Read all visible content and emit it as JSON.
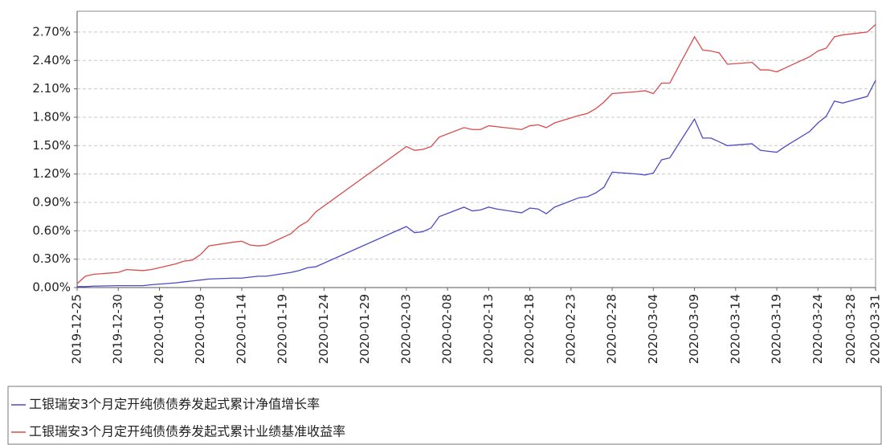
{
  "chart_data": {
    "type": "line",
    "x": [
      "2019-12-25",
      "2019-12-26",
      "2019-12-27",
      "2019-12-30",
      "2019-12-31",
      "2020-01-02",
      "2020-01-03",
      "2020-01-06",
      "2020-01-07",
      "2020-01-08",
      "2020-01-09",
      "2020-01-10",
      "2020-01-13",
      "2020-01-14",
      "2020-01-15",
      "2020-01-16",
      "2020-01-17",
      "2020-01-20",
      "2020-01-21",
      "2020-01-22",
      "2020-01-23",
      "2020-02-03",
      "2020-02-04",
      "2020-02-05",
      "2020-02-06",
      "2020-02-07",
      "2020-02-10",
      "2020-02-11",
      "2020-02-12",
      "2020-02-13",
      "2020-02-14",
      "2020-02-17",
      "2020-02-18",
      "2020-02-19",
      "2020-02-20",
      "2020-02-21",
      "2020-02-24",
      "2020-02-25",
      "2020-02-26",
      "2020-02-27",
      "2020-02-28",
      "2020-03-02",
      "2020-03-03",
      "2020-03-04",
      "2020-03-05",
      "2020-03-06",
      "2020-03-09",
      "2020-03-10",
      "2020-03-11",
      "2020-03-12",
      "2020-03-13",
      "2020-03-16",
      "2020-03-17",
      "2020-03-18",
      "2020-03-19",
      "2020-03-20",
      "2020-03-23",
      "2020-03-24",
      "2020-03-25",
      "2020-03-26",
      "2020-03-27",
      "2020-03-30",
      "2020-03-31"
    ],
    "series": [
      {
        "name": "工银瑞安3个月定开纯债债券发起式累计净值增长率",
        "color": "#4b4bc8",
        "values": [
          0.01,
          0.01,
          0.015,
          0.02,
          0.02,
          0.02,
          0.03,
          0.05,
          0.06,
          0.07,
          0.08,
          0.09,
          0.1,
          0.1,
          0.11,
          0.12,
          0.12,
          0.16,
          0.18,
          0.21,
          0.22,
          0.645,
          0.58,
          0.59,
          0.63,
          0.75,
          0.85,
          0.81,
          0.82,
          0.85,
          0.83,
          0.79,
          0.84,
          0.83,
          0.78,
          0.85,
          0.95,
          0.96,
          1.0,
          1.06,
          1.22,
          1.2,
          1.19,
          1.21,
          1.35,
          1.37,
          1.78,
          1.58,
          1.58,
          1.54,
          1.5,
          1.52,
          1.45,
          1.44,
          1.43,
          1.49,
          1.65,
          1.74,
          1.81,
          1.97,
          1.95,
          2.02,
          2.19
        ]
      },
      {
        "name": "工银瑞安3个月定开纯债债券发起式累计业绩基准收益率",
        "color": "#d94b4b",
        "values": [
          0.04,
          0.12,
          0.14,
          0.16,
          0.19,
          0.18,
          0.19,
          0.25,
          0.28,
          0.29,
          0.35,
          0.44,
          0.48,
          0.49,
          0.45,
          0.44,
          0.45,
          0.57,
          0.65,
          0.7,
          0.8,
          1.49,
          1.45,
          1.46,
          1.49,
          1.59,
          1.69,
          1.67,
          1.67,
          1.71,
          1.7,
          1.67,
          1.71,
          1.72,
          1.69,
          1.74,
          1.82,
          1.84,
          1.89,
          1.96,
          2.05,
          2.07,
          2.08,
          2.05,
          2.16,
          2.16,
          2.65,
          2.51,
          2.5,
          2.48,
          2.36,
          2.38,
          2.3,
          2.3,
          2.28,
          2.32,
          2.44,
          2.5,
          2.53,
          2.65,
          2.67,
          2.7,
          2.78
        ]
      }
    ],
    "xlim": [
      "2019-12-25",
      "2020-03-31"
    ],
    "xticks": [
      "2019-12-25",
      "2019-12-30",
      "2020-01-04",
      "2020-01-09",
      "2020-01-14",
      "2020-01-19",
      "2020-01-24",
      "2020-01-29",
      "2020-02-03",
      "2020-02-08",
      "2020-02-13",
      "2020-02-18",
      "2020-02-23",
      "2020-02-28",
      "2020-03-04",
      "2020-03-09",
      "2020-03-14",
      "2020-03-19",
      "2020-03-24",
      "2020-03-28",
      "2020-03-31"
    ],
    "ylim": [
      0,
      2.92
    ],
    "yticks": [
      {
        "value": 0,
        "label": "0.00%"
      },
      {
        "value": 0.3,
        "label": "0.30%"
      },
      {
        "value": 0.6,
        "label": "0.60%"
      },
      {
        "value": 0.9,
        "label": "0.90%"
      },
      {
        "value": 1.2,
        "label": "1.20%"
      },
      {
        "value": 1.5,
        "label": "1.50%"
      },
      {
        "value": 1.8,
        "label": "1.80%"
      },
      {
        "value": 2.1,
        "label": "2.10%"
      },
      {
        "value": 2.4,
        "label": "2.40%"
      },
      {
        "value": 2.7,
        "label": "2.70%"
      }
    ],
    "grid": true,
    "legend": "bottom"
  }
}
